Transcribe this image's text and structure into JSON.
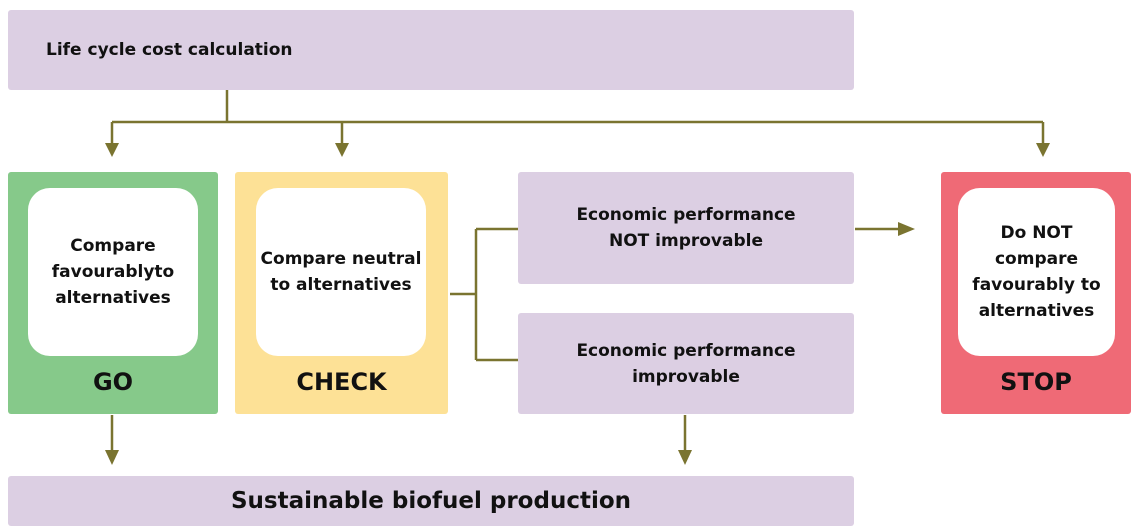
{
  "header": {
    "title": "Life cycle cost calculation"
  },
  "nodes": [
    {
      "label": "Compare favourablyto alternatives",
      "status": "GO"
    },
    {
      "label": "Compare neutral to alternatives",
      "status": "CHECK"
    },
    {
      "label": "Economic performance NOT improvable"
    },
    {
      "label": "Economic performance improvable"
    },
    {
      "label": "Do NOT compare favourably to alternatives",
      "status": "STOP"
    }
  ],
  "footer": {
    "title": "Sustainable biofuel production"
  }
}
